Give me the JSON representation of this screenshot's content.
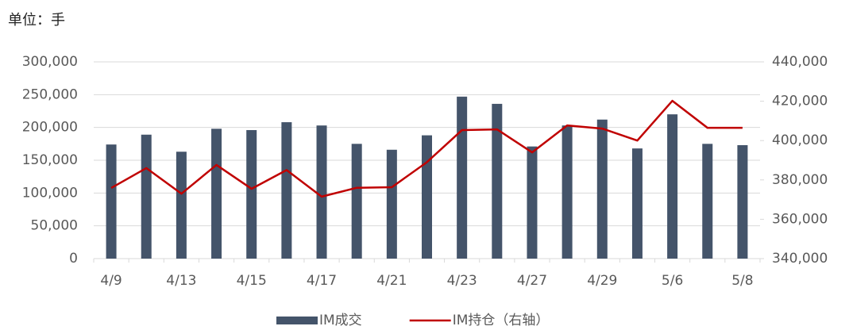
{
  "chart_data": {
    "type": "bar_line",
    "subtitle": "单位：手",
    "categories": [
      "4/9",
      null,
      "4/13",
      null,
      "4/15",
      null,
      "4/17",
      null,
      "4/21",
      null,
      "4/23",
      null,
      "4/27",
      null,
      "4/29",
      null,
      "5/6",
      null,
      "5/8"
    ],
    "series": [
      {
        "name": "IM成交",
        "type": "bar",
        "color": "#44546a",
        "values": [
          174000,
          189000,
          163000,
          198000,
          196000,
          208000,
          203000,
          175000,
          166000,
          188000,
          247000,
          236000,
          171000,
          203000,
          212000,
          168000,
          220000,
          175000,
          173000
        ]
      },
      {
        "name": "IM持仓（右轴）",
        "type": "line",
        "axis": "y2",
        "color": "#c00000",
        "values": [
          375900,
          386000,
          373000,
          387600,
          375500,
          385000,
          371500,
          376000,
          376300,
          389000,
          405300,
          405700,
          394000,
          407700,
          406100,
          400000,
          420200,
          406500,
          406500
        ]
      }
    ],
    "ylim": [
      0,
      300000
    ],
    "yticks": [
      0,
      {
        "value": 50000,
        "label": "50,000"
      },
      {
        "value": 100000,
        "label": "100,000"
      },
      {
        "value": 150000,
        "label": "150,000"
      },
      {
        "value": 200000,
        "label": "200,000"
      },
      {
        "value": 250000,
        "label": "250,000"
      },
      {
        "value": 300000,
        "label": "300,000"
      }
    ],
    "y2lim": [
      340000,
      440000
    ],
    "y2ticks": [
      {
        "value": 340000,
        "label": "340,000"
      },
      {
        "value": 360000,
        "label": "360,000"
      },
      {
        "value": 380000,
        "label": "380,000"
      },
      {
        "value": 400000,
        "label": "400,000"
      },
      {
        "value": 420000,
        "label": "420,000"
      },
      {
        "value": 440000,
        "label": "440,000"
      }
    ],
    "grid": true,
    "legend": "bottom"
  }
}
